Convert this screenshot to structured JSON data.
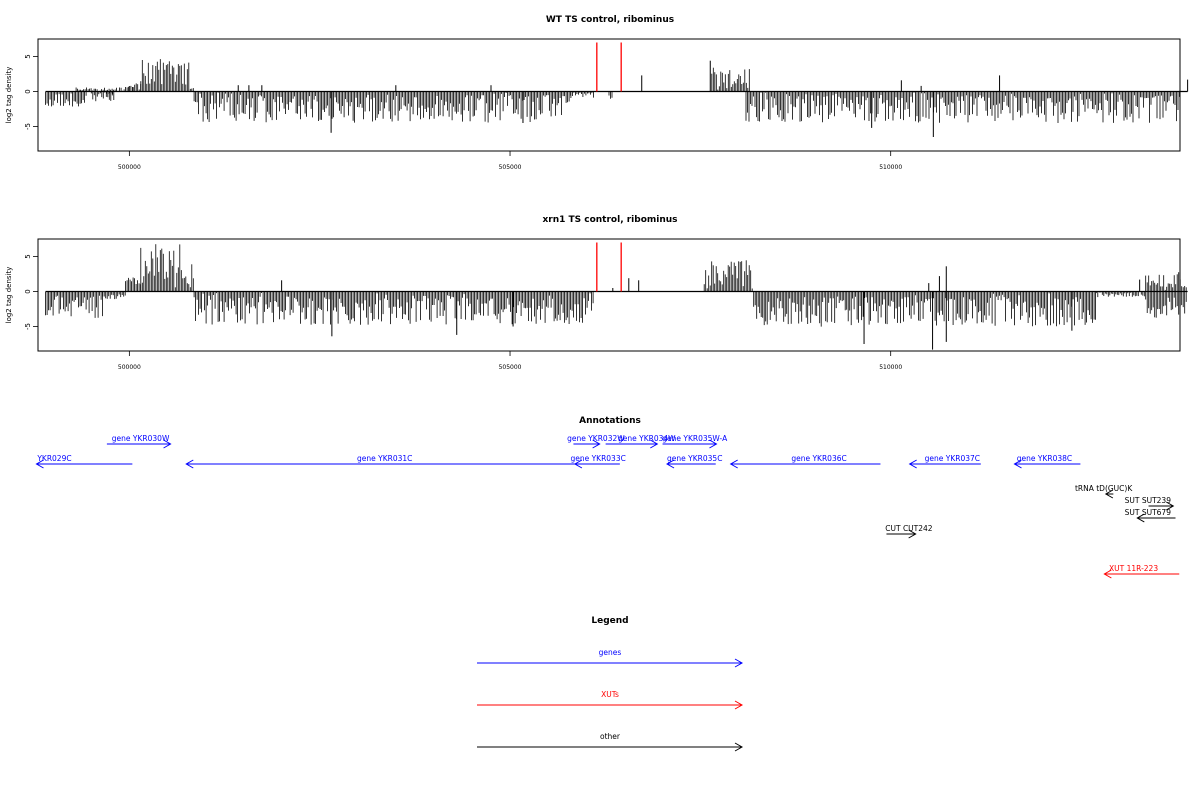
{
  "chart_data": [
    {
      "type": "bar",
      "title": "WT TS control, ribominus",
      "xlabel": "",
      "ylabel": "log2 tag density",
      "xlim": [
        498800,
        513800
      ],
      "ylim": [
        -8.5,
        7.5
      ],
      "x_ticks": [
        500000,
        505000,
        510000
      ],
      "x_tick_labels": [
        "500000",
        "505000",
        "510000"
      ],
      "y_ticks": [
        -5,
        0,
        5
      ],
      "y_tick_labels": [
        "-5",
        "0",
        "5"
      ],
      "baseline_range": [
        498900,
        513900
      ],
      "series": [
        {
          "color": "#000000",
          "segments": [
            {
              "x0": 498900,
              "x1": 499450,
              "min": 0.8,
              "max": 2.2,
              "sign": -1
            },
            {
              "x0": 499300,
              "x1": 499950,
              "min": 0.2,
              "max": 0.6,
              "sign": 1
            },
            {
              "x0": 499500,
              "x1": 499800,
              "min": 0.4,
              "max": 1.4,
              "sign": -1
            },
            {
              "x0": 499700,
              "x1": 499800,
              "min": 0.2,
              "max": 0.4,
              "sign": -1
            },
            {
              "x0": 500000,
              "x1": 500050,
              "min": 0.3,
              "max": 0.9,
              "sign": 1
            },
            {
              "x0": 499950,
              "x1": 500000,
              "min": 0.5,
              "max": 1.0,
              "sign": 1
            },
            {
              "x0": 500050,
              "x1": 500150,
              "min": 0.6,
              "max": 1.2,
              "sign": 1
            },
            {
              "x0": 500150,
              "x1": 500800,
              "min": 0.8,
              "max": 4.8,
              "sign": 1
            },
            {
              "x0": 500800,
              "x1": 500850,
              "min": 0.2,
              "max": 0.6,
              "sign": 1
            },
            {
              "x0": 500850,
              "x1": 505800,
              "min": 0.5,
              "max": 4.5,
              "sign": -1
            },
            {
              "x0": 505800,
              "x1": 506100,
              "min": 0.2,
              "max": 1.0,
              "sign": -1
            },
            {
              "x0": 506300,
              "x1": 506350,
              "min": 0.3,
              "max": 1.2,
              "sign": -1
            },
            {
              "x0": 507650,
              "x1": 508150,
              "min": 0.6,
              "max": 3.6,
              "sign": 1
            },
            {
              "x0": 508100,
              "x1": 513800,
              "min": 0.5,
              "max": 4.5,
              "sign": -1
            }
          ],
          "marks": [
            {
              "x": 501430,
              "y": 0.9
            },
            {
              "x": 501570,
              "y": 0.9
            },
            {
              "x": 501740,
              "y": 0.9
            },
            {
              "x": 502650,
              "y": -5.9
            },
            {
              "x": 503500,
              "y": 0.9
            },
            {
              "x": 504750,
              "y": 0.9
            },
            {
              "x": 505170,
              "y": -4.5
            },
            {
              "x": 506730,
              "y": 2.3
            },
            {
              "x": 507630,
              "y": 4.4
            },
            {
              "x": 509750,
              "y": -5.2
            },
            {
              "x": 510140,
              "y": 1.6
            },
            {
              "x": 510400,
              "y": 0.8
            },
            {
              "x": 510560,
              "y": -6.5
            },
            {
              "x": 511430,
              "y": 2.3
            },
            {
              "x": 513900,
              "y": 1.7
            }
          ]
        },
        {
          "color": "#ff0000",
          "marks": [
            {
              "x": 506140,
              "y": 7
            },
            {
              "x": 506460,
              "y": 7
            }
          ]
        }
      ]
    },
    {
      "type": "bar",
      "title": "xrn1 TS control, ribominus",
      "xlabel": "",
      "ylabel": "log2 tag density",
      "xlim": [
        498800,
        513800
      ],
      "ylim": [
        -8.5,
        7.5
      ],
      "x_ticks": [
        500000,
        505000,
        510000
      ],
      "x_tick_labels": [
        "500000",
        "505000",
        "510000"
      ],
      "y_ticks": [
        -5,
        0,
        5
      ],
      "y_tick_labels": [
        "-5",
        "0",
        "5"
      ],
      "baseline_range": [
        498900,
        513900
      ],
      "series": [
        {
          "color": "#000000",
          "segments": [
            {
              "x0": 498900,
              "x1": 499650,
              "min": 0.8,
              "max": 3.8,
              "sign": -1
            },
            {
              "x0": 499650,
              "x1": 499950,
              "min": 0.3,
              "max": 1.2,
              "sign": -1
            },
            {
              "x0": 499950,
              "x1": 500150,
              "min": 0.8,
              "max": 2.8,
              "sign": 1
            },
            {
              "x0": 500150,
              "x1": 500850,
              "min": 1.8,
              "max": 6.8,
              "sign": 1
            },
            {
              "x0": 500850,
              "x1": 506100,
              "min": 0.6,
              "max": 4.8,
              "sign": -1
            },
            {
              "x0": 507550,
              "x1": 508200,
              "min": 1.0,
              "max": 4.6,
              "sign": 1
            },
            {
              "x0": 508200,
              "x1": 509500,
              "min": 0.8,
              "max": 5.2,
              "sign": -1
            },
            {
              "x0": 509500,
              "x1": 512700,
              "min": 0.8,
              "max": 5.0,
              "sign": -1
            },
            {
              "x0": 512700,
              "x1": 513350,
              "min": 0.2,
              "max": 0.8,
              "sign": -1
            },
            {
              "x0": 513350,
              "x1": 513900,
              "min": 0.8,
              "max": 3.8,
              "sign": -1
            },
            {
              "x0": 513350,
              "x1": 513900,
              "min": 0.6,
              "max": 2.8,
              "sign": 1
            }
          ],
          "marks": [
            {
              "x": 502000,
              "y": 1.6
            },
            {
              "x": 502660,
              "y": -6.4
            },
            {
              "x": 504300,
              "y": -6.2
            },
            {
              "x": 505040,
              "y": -5.0
            },
            {
              "x": 506350,
              "y": 0.5
            },
            {
              "x": 506560,
              "y": 1.9
            },
            {
              "x": 506690,
              "y": 1.6
            },
            {
              "x": 509650,
              "y": -7.5
            },
            {
              "x": 510500,
              "y": 1.2
            },
            {
              "x": 510550,
              "y": -8.3
            },
            {
              "x": 510640,
              "y": 2.2
            },
            {
              "x": 510730,
              "y": 3.6
            },
            {
              "x": 510730,
              "y": -7.2
            },
            {
              "x": 512380,
              "y": -5.6
            },
            {
              "x": 513270,
              "y": 1.7
            }
          ]
        },
        {
          "color": "#ff0000",
          "marks": [
            {
              "x": 506140,
              "y": 7
            },
            {
              "x": 506460,
              "y": 7
            }
          ]
        }
      ]
    }
  ],
  "annotations": {
    "title": "Annotations",
    "features": [
      {
        "label": "YKR029C",
        "x0": 498780,
        "x1": 500060,
        "row": 0,
        "dir": "left",
        "color": "#0000ff",
        "label_x": 499020
      },
      {
        "label": "gene YKR030W",
        "x0": 499720,
        "x1": 500570,
        "row": -1,
        "dir": "right",
        "color": "#0000ff",
        "label_x": 500170
      },
      {
        "label": "gene YKR031C",
        "x0": 500780,
        "x1": 506030,
        "row": 0,
        "dir": "left",
        "color": "#0000ff",
        "label_x": 503430
      },
      {
        "label": "gene YKR032W",
        "x0": 505950,
        "x1": 506300,
        "row": -1,
        "dir": "right",
        "color": "#0000ff",
        "label_x": 506250
      },
      {
        "label": "gene YKR033C",
        "x0": 505970,
        "x1": 506570,
        "row": 0,
        "dir": "left",
        "color": "#0000ff",
        "label_x": 506280
      },
      {
        "label": "gene YKR034W",
        "x0": 506380,
        "x1": 507070,
        "row": -1,
        "dir": "right",
        "color": "#0000ff",
        "label_x": 506930
      },
      {
        "label": "gene YKR035W-A",
        "x0": 507140,
        "x1": 507860,
        "row": -1,
        "dir": "right",
        "color": "#0000ff",
        "label_x": 507570
      },
      {
        "label": "gene YKR035C",
        "x0": 507200,
        "x1": 507850,
        "row": 0,
        "dir": "left",
        "color": "#0000ff",
        "label_x": 507570
      },
      {
        "label": "gene YKR036C",
        "x0": 508050,
        "x1": 510050,
        "row": 0,
        "dir": "left",
        "color": "#0000ff",
        "label_x": 509230
      },
      {
        "label": "gene YKR037C",
        "x0": 510440,
        "x1": 511390,
        "row": 0,
        "dir": "left",
        "color": "#0000ff",
        "label_x": 511010
      },
      {
        "label": "gene YKR038C",
        "x0": 511840,
        "x1": 512720,
        "row": 0,
        "dir": "left",
        "color": "#0000ff",
        "label_x": 512240
      },
      {
        "label": "tRNA tD(GUC)K",
        "x0": 513060,
        "x1": 513160,
        "row": 1.5,
        "dir": "left",
        "color": "#000000",
        "label_x": 513030
      },
      {
        "label": "SUT SUT239",
        "x0": 513630,
        "x1": 513960,
        "row": 2.1,
        "dir": "right",
        "color": "#000000",
        "label_x": 513620
      },
      {
        "label": "SUT SUT679",
        "x0": 513480,
        "x1": 513990,
        "row": 2.7,
        "dir": "left",
        "color": "#000000",
        "label_x": 513620
      },
      {
        "label": "CUT CUT242",
        "x0": 510130,
        "x1": 510520,
        "row": 3.5,
        "dir": "right",
        "color": "#000000",
        "label_x": 510430
      },
      {
        "label": "XUT 11R-223",
        "x0": 513040,
        "x1": 514040,
        "row": 5.5,
        "dir": "left",
        "color": "#ff0000",
        "label_x": 513430
      }
    ]
  },
  "legend": {
    "title": "Legend",
    "items": [
      {
        "label": "genes",
        "color": "#0000ff"
      },
      {
        "label": "XUTs",
        "color": "#ff0000"
      },
      {
        "label": "other",
        "color": "#000000"
      }
    ]
  }
}
